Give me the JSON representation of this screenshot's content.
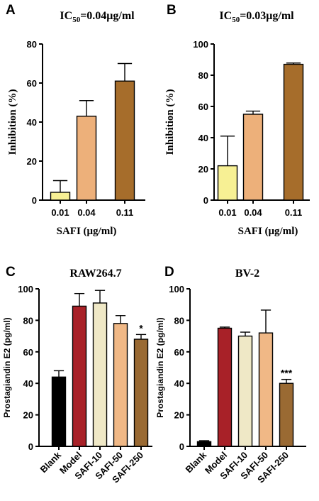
{
  "chart_data": [
    {
      "panel": "A",
      "type": "bar",
      "title": "IC50=0.04μg/ml",
      "title_parts": {
        "pre": "IC",
        "sub": "50",
        "post": "=0.04μg/ml"
      },
      "xlabel": "SAFI (μg/ml)",
      "ylabel": "Inhibition (%)",
      "categories": [
        "0.01",
        "0.04",
        "0.11"
      ],
      "values": [
        4,
        43,
        61
      ],
      "errors": [
        6,
        8,
        9
      ],
      "colors": [
        "#f7f094",
        "#edb07a",
        "#a66d2b"
      ],
      "ylim": [
        0,
        80
      ],
      "yticks": [
        0,
        20,
        40,
        60,
        80
      ],
      "annotations": [],
      "grid": false
    },
    {
      "panel": "B",
      "type": "bar",
      "title": "IC50=0.03μg/ml",
      "title_parts": {
        "pre": "IC",
        "sub": "50",
        "post": "=0.03μg/ml"
      },
      "xlabel": "SAFI (μg/ml)",
      "ylabel": "Inhibition (%)",
      "categories": [
        "0.01",
        "0.04",
        "0.11"
      ],
      "values": [
        22,
        55,
        87
      ],
      "errors": [
        19,
        2,
        0.8
      ],
      "colors": [
        "#f7f094",
        "#edb07a",
        "#a66d2b"
      ],
      "ylim": [
        0,
        100
      ],
      "yticks": [
        0,
        20,
        40,
        60,
        80,
        100
      ],
      "annotations": [],
      "grid": false
    },
    {
      "panel": "C",
      "type": "bar",
      "title": "RAW264.7",
      "xlabel": "",
      "ylabel": "Prostagiandin E2 (pg/ml)",
      "categories": [
        "Blank",
        "Model",
        "SAFI-10",
        "SAFI-50",
        "SAFI-250"
      ],
      "values": [
        44,
        89,
        91,
        78,
        68
      ],
      "errors": [
        4,
        8,
        8,
        5,
        3
      ],
      "colors": [
        "#000000",
        "#a82128",
        "#efe8c6",
        "#f0b886",
        "#9a6a33"
      ],
      "ylim": [
        0,
        100
      ],
      "yticks": [
        0,
        20,
        40,
        60,
        80,
        100
      ],
      "annotations": [
        {
          "category": "SAFI-250",
          "text": "*"
        }
      ],
      "grid": false
    },
    {
      "panel": "D",
      "type": "bar",
      "title": "BV-2",
      "xlabel": "",
      "ylabel": "Prostagiandin E2 (pg/ml)",
      "categories": [
        "Blank",
        "Model",
        "SAFI-10",
        "SAFI-50",
        "SAFI-250"
      ],
      "values": [
        3,
        75,
        70,
        72,
        40
      ],
      "errors": [
        0.6,
        0.7,
        2.5,
        14.5,
        2.5
      ],
      "colors": [
        "#000000",
        "#a82128",
        "#efe8c6",
        "#f0b886",
        "#9a6a33"
      ],
      "ylim": [
        0,
        100
      ],
      "yticks": [
        0,
        20,
        40,
        60,
        80,
        100
      ],
      "annotations": [
        {
          "category": "SAFI-250",
          "text": "***"
        }
      ],
      "grid": false
    }
  ]
}
